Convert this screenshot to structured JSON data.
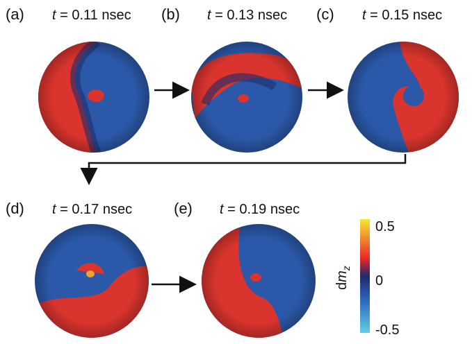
{
  "panels": [
    {
      "label": "(a)",
      "time_var": "t",
      "time": "= 0.11 nsec"
    },
    {
      "label": "(b)",
      "time_var": "t",
      "time": "= 0.13 nsec"
    },
    {
      "label": "(c)",
      "time_var": "t",
      "time": "= 0.15 nsec"
    },
    {
      "label": "(d)",
      "time_var": "t",
      "time": "= 0.17 nsec"
    },
    {
      "label": "(e)",
      "time_var": "t",
      "time": "= 0.19 nsec"
    }
  ],
  "colorbar": {
    "label": "d",
    "label_var": "m",
    "label_sub": "z",
    "ticks": [
      "0.5",
      "0",
      "-0.5"
    ]
  }
}
